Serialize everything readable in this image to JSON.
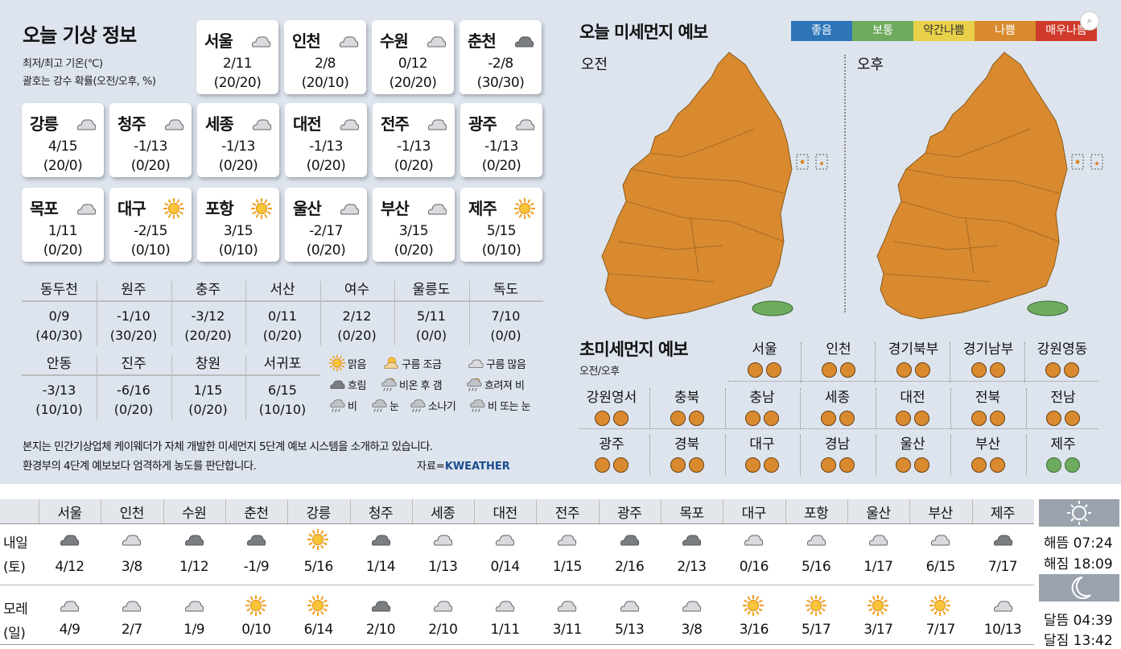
{
  "title": "오늘 기상 정보",
  "subtitle1": "최저/최고 기온(℃)",
  "subtitle2": "괄호는 강수 확률(오전/오후, %)",
  "cards": [
    {
      "name": "서울",
      "icon": "cloud-icon",
      "temp": "2/11",
      "prob": "(20/20)"
    },
    {
      "name": "인천",
      "icon": "cloud-icon",
      "temp": "2/8",
      "prob": "(20/10)"
    },
    {
      "name": "수원",
      "icon": "cloud-icon",
      "temp": "0/12",
      "prob": "(20/20)"
    },
    {
      "name": "춘천",
      "icon": "dark-cloud-icon",
      "temp": "-2/8",
      "prob": "(30/30)"
    },
    {
      "name": "강릉",
      "icon": "cloud-icon",
      "temp": "4/15",
      "prob": "(20/0)"
    },
    {
      "name": "청주",
      "icon": "cloud-icon",
      "temp": "-1/13",
      "prob": "(0/20)"
    },
    {
      "name": "세종",
      "icon": "cloud-icon",
      "temp": "-1/13",
      "prob": "(0/20)"
    },
    {
      "name": "대전",
      "icon": "cloud-icon",
      "temp": "-1/13",
      "prob": "(0/20)"
    },
    {
      "name": "전주",
      "icon": "cloud-icon",
      "temp": "-1/13",
      "prob": "(0/20)"
    },
    {
      "name": "광주",
      "icon": "cloud-icon",
      "temp": "-1/13",
      "prob": "(0/20)"
    },
    {
      "name": "목포",
      "icon": "cloud-icon",
      "temp": "1/11",
      "prob": "(0/20)"
    },
    {
      "name": "대구",
      "icon": "sun-icon",
      "temp": "-2/15",
      "prob": "(0/10)"
    },
    {
      "name": "포항",
      "icon": "sun-icon",
      "temp": "3/15",
      "prob": "(0/10)"
    },
    {
      "name": "울산",
      "icon": "cloud-icon",
      "temp": "-2/17",
      "prob": "(0/20)"
    },
    {
      "name": "부산",
      "icon": "cloud-icon",
      "temp": "3/15",
      "prob": "(0/20)"
    },
    {
      "name": "제주",
      "icon": "sun-icon",
      "temp": "5/15",
      "prob": "(0/10)"
    }
  ],
  "others": [
    {
      "name": "동두천",
      "temp": "0/9",
      "prob": "(40/30)"
    },
    {
      "name": "원주",
      "temp": "-1/10",
      "prob": "(30/20)"
    },
    {
      "name": "충주",
      "temp": "-3/12",
      "prob": "(20/20)"
    },
    {
      "name": "서산",
      "temp": "0/11",
      "prob": "(0/20)"
    },
    {
      "name": "여수",
      "temp": "2/12",
      "prob": "(0/20)"
    },
    {
      "name": "울릉도",
      "temp": "5/11",
      "prob": "(0/0)"
    },
    {
      "name": "독도",
      "temp": "7/10",
      "prob": "(0/0)"
    },
    {
      "name": "안동",
      "temp": "-3/13",
      "prob": "(10/10)"
    },
    {
      "name": "진주",
      "temp": "-6/16",
      "prob": "(0/20)"
    },
    {
      "name": "창원",
      "temp": "1/15",
      "prob": "(0/20)"
    },
    {
      "name": "서귀포",
      "temp": "6/15",
      "prob": "(10/10)"
    }
  ],
  "legend": [
    {
      "icon": "sun-icon",
      "label": "맑음"
    },
    {
      "icon": "partly-cloudy-icon",
      "label": "구름 조금"
    },
    {
      "icon": "cloud-icon",
      "label": "구름 많음"
    },
    {
      "icon": "dark-cloud-icon",
      "label": "흐림"
    },
    {
      "icon": "rain-then-clear-icon",
      "label": "비온 후 갬"
    },
    {
      "icon": "clouding-rain-icon",
      "label": "흐려져 비"
    },
    {
      "icon": "rain-icon",
      "label": "비"
    },
    {
      "icon": "snow-icon",
      "label": "눈"
    },
    {
      "icon": "shower-icon",
      "label": "소나기"
    },
    {
      "icon": "rain-or-snow-icon",
      "label": "비 또는 눈"
    }
  ],
  "note1": "본지는 민간기상업체 케이웨더가 자체 개발한 미세먼지 5단계 예보 시스템을 소개하고 있습니다.",
  "note2": "환경부의 4단계 예보보다 엄격하게 농도를 판단합니다.",
  "source": "자료=",
  "source_brand": "KWEATHER",
  "dust": {
    "title": "오늘 미세먼지 예보",
    "scale": [
      {
        "label": "좋음",
        "color": "#2e76b8"
      },
      {
        "label": "보통",
        "color": "#6fab5f"
      },
      {
        "label": "약간나쁨",
        "color": "#e8d04a"
      },
      {
        "label": "나쁨",
        "color": "#d98a2f"
      },
      {
        "label": "매우나쁨",
        "color": "#cf3a2b"
      }
    ],
    "am": "오전",
    "pm": "오후"
  },
  "ultra": {
    "title": "초미세먼지 예보",
    "sub": "오전/오후",
    "regions": [
      {
        "name": "서울",
        "am": "나쁨",
        "pm": "나쁨"
      },
      {
        "name": "인천",
        "am": "나쁨",
        "pm": "나쁨"
      },
      {
        "name": "경기북부",
        "am": "나쁨",
        "pm": "나쁨"
      },
      {
        "name": "경기남부",
        "am": "나쁨",
        "pm": "나쁨"
      },
      {
        "name": "강원영동",
        "am": "나쁨",
        "pm": "나쁨"
      },
      {
        "name": "강원영서",
        "am": "나쁨",
        "pm": "나쁨"
      },
      {
        "name": "충북",
        "am": "나쁨",
        "pm": "나쁨"
      },
      {
        "name": "충남",
        "am": "나쁨",
        "pm": "나쁨"
      },
      {
        "name": "세종",
        "am": "나쁨",
        "pm": "나쁨"
      },
      {
        "name": "대전",
        "am": "나쁨",
        "pm": "나쁨"
      },
      {
        "name": "전북",
        "am": "나쁨",
        "pm": "나쁨"
      },
      {
        "name": "전남",
        "am": "나쁨",
        "pm": "나쁨"
      },
      {
        "name": "광주",
        "am": "나쁨",
        "pm": "나쁨"
      },
      {
        "name": "경북",
        "am": "나쁨",
        "pm": "나쁨"
      },
      {
        "name": "대구",
        "am": "나쁨",
        "pm": "나쁨"
      },
      {
        "name": "경남",
        "am": "나쁨",
        "pm": "나쁨"
      },
      {
        "name": "울산",
        "am": "나쁨",
        "pm": "나쁨"
      },
      {
        "name": "부산",
        "am": "나쁨",
        "pm": "나쁨"
      },
      {
        "name": "제주",
        "am": "보통",
        "pm": "보통"
      }
    ]
  },
  "forecast": {
    "cities": [
      "서울",
      "인천",
      "수원",
      "춘천",
      "강릉",
      "청주",
      "세종",
      "대전",
      "전주",
      "광주",
      "목포",
      "대구",
      "포항",
      "울산",
      "부산",
      "제주"
    ],
    "day1_label1": "내일",
    "day1_label2": "(토)",
    "day2_label1": "모레",
    "day2_label2": "(일)",
    "day1": [
      {
        "icon": "dark-cloud-icon",
        "temp": "4/12"
      },
      {
        "icon": "cloud-icon",
        "temp": "3/8"
      },
      {
        "icon": "dark-cloud-icon",
        "temp": "1/12"
      },
      {
        "icon": "dark-cloud-icon",
        "temp": "-1/9"
      },
      {
        "icon": "sun-icon",
        "temp": "5/16"
      },
      {
        "icon": "dark-cloud-icon",
        "temp": "1/14"
      },
      {
        "icon": "cloud-icon",
        "temp": "1/13"
      },
      {
        "icon": "cloud-icon",
        "temp": "0/14"
      },
      {
        "icon": "cloud-icon",
        "temp": "1/15"
      },
      {
        "icon": "dark-cloud-icon",
        "temp": "2/16"
      },
      {
        "icon": "dark-cloud-icon",
        "temp": "2/13"
      },
      {
        "icon": "cloud-icon",
        "temp": "0/16"
      },
      {
        "icon": "cloud-icon",
        "temp": "5/16"
      },
      {
        "icon": "cloud-icon",
        "temp": "1/17"
      },
      {
        "icon": "cloud-icon",
        "temp": "6/15"
      },
      {
        "icon": "dark-cloud-icon",
        "temp": "7/17"
      }
    ],
    "day2": [
      {
        "icon": "cloud-icon",
        "temp": "4/9"
      },
      {
        "icon": "cloud-icon",
        "temp": "2/7"
      },
      {
        "icon": "cloud-icon",
        "temp": "1/9"
      },
      {
        "icon": "sun-icon",
        "temp": "0/10"
      },
      {
        "icon": "sun-icon",
        "temp": "6/14"
      },
      {
        "icon": "dark-cloud-icon",
        "temp": "2/10"
      },
      {
        "icon": "cloud-icon",
        "temp": "2/10"
      },
      {
        "icon": "cloud-icon",
        "temp": "1/11"
      },
      {
        "icon": "cloud-icon",
        "temp": "3/11"
      },
      {
        "icon": "cloud-icon",
        "temp": "5/13"
      },
      {
        "icon": "cloud-icon",
        "temp": "3/8"
      },
      {
        "icon": "sun-icon",
        "temp": "3/16"
      },
      {
        "icon": "sun-icon",
        "temp": "5/17"
      },
      {
        "icon": "sun-icon",
        "temp": "3/17"
      },
      {
        "icon": "sun-icon",
        "temp": "7/17"
      },
      {
        "icon": "cloud-icon",
        "temp": "10/13"
      }
    ]
  },
  "sun": {
    "rise": "해뜸 07:24",
    "set": "해짐 18:09"
  },
  "moon": {
    "rise": "달뜸 04:39",
    "set": "달짐 13:42"
  }
}
